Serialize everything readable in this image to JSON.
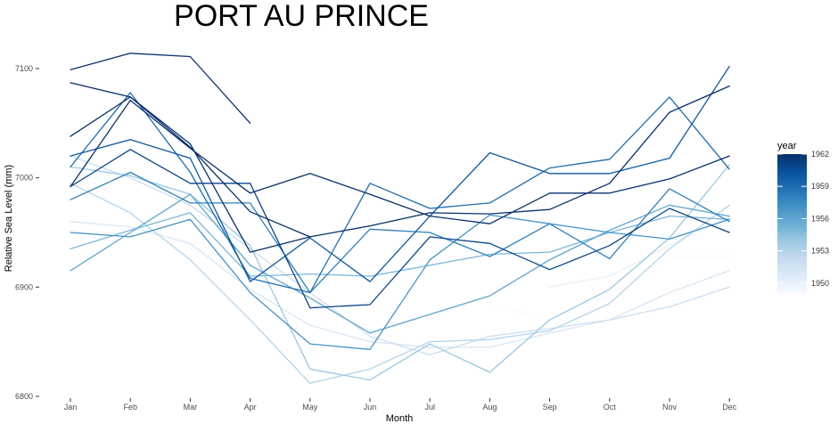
{
  "chart_data": {
    "type": "line",
    "title": "PORT AU PRINCE",
    "xlabel": "Month",
    "ylabel": "Relative Sea Level (mm)",
    "categories": [
      "Jan",
      "Feb",
      "Mar",
      "Apr",
      "May",
      "Jun",
      "Jul",
      "Aug",
      "Sep",
      "Oct",
      "Nov",
      "Dec"
    ],
    "ylim": [
      6800,
      7130
    ],
    "yticks": [
      6800,
      6900,
      7000,
      7100
    ],
    "grid": false,
    "legend": {
      "title": "year",
      "placement": "right",
      "type": "colorbar",
      "range": [
        1949,
        1962
      ],
      "ticks": [
        1950,
        1953,
        1956,
        1959,
        1962
      ],
      "low_color": "#f7fbff",
      "high_color": "#08306b"
    },
    "series": [
      {
        "year": 1949,
        "values": [
          null,
          null,
          null,
          null,
          null,
          null,
          null,
          6885,
          6870,
          6893,
          6928,
          6928
        ]
      },
      {
        "year": 1950,
        "values": [
          null,
          null,
          null,
          null,
          null,
          null,
          null,
          null,
          6900,
          6910,
          6938,
          6965
        ]
      },
      {
        "year": 1951,
        "values": [
          6960,
          6955,
          6940,
          6898,
          6865,
          6850,
          6845,
          6845,
          6858,
          6870,
          6895,
          6915
        ]
      },
      {
        "year": 1952,
        "values": [
          7020,
          7000,
          6975,
          6935,
          6895,
          6855,
          6838,
          6855,
          6862,
          6870,
          6882,
          6900
        ]
      },
      {
        "year": 1953,
        "values": [
          6995,
          6968,
          6925,
          6870,
          6812,
          6825,
          6850,
          6852,
          6860,
          6885,
          6935,
          6975
        ]
      },
      {
        "year": 1954,
        "values": [
          7010,
          7002,
          6985,
          6938,
          6825,
          6815,
          6848,
          6822,
          6870,
          6898,
          6945,
          7012
        ]
      },
      {
        "year": 1955,
        "values": [
          6935,
          6952,
          6968,
          6910,
          6912,
          6910,
          6920,
          6930,
          6932,
          6950,
          6965,
          6962
        ]
      },
      {
        "year": 1956,
        "values": [
          6915,
          6950,
          6985,
          6920,
          6890,
          6858,
          6875,
          6892,
          6925,
          6952,
          6975,
          6965
        ]
      },
      {
        "year": 1957,
        "values": [
          6950,
          6946,
          6962,
          6895,
          6848,
          6843,
          6925,
          6966,
          6958,
          6950,
          6944,
          6962
        ]
      },
      {
        "year": 1958,
        "values": [
          6980,
          7005,
          6977,
          6977,
          6895,
          6953,
          6950,
          6928,
          6958,
          6926,
          6990,
          6960
        ]
      },
      {
        "year": 1959,
        "values": [
          7010,
          7078,
          7005,
          6908,
          6895,
          6995,
          6972,
          6977,
          7009,
          7017,
          7074,
          7008
        ]
      },
      {
        "year": 1960,
        "values": [
          7020,
          7035,
          7018,
          6905,
          6945,
          6905,
          6965,
          7023,
          7004,
          7004,
          7018,
          7102
        ]
      },
      {
        "year": 1961,
        "values": [
          6992,
          7026,
          6995,
          6995,
          6881,
          6884,
          6946,
          6940,
          6916,
          6938,
          6972,
          6950
        ]
      },
      {
        "year": 1962,
        "values": [
          6992,
          7071,
          7027,
          6986,
          7004,
          6985,
          6965,
          6958,
          6986,
          6986,
          6999,
          7020
        ]
      },
      {
        "year": 1962,
        "values": [
          7038,
          7074,
          7031,
          6932,
          6946,
          6956,
          6968,
          6967,
          6971,
          6995,
          7060,
          7084
        ]
      },
      {
        "year": 1962,
        "values": [
          7087,
          7074,
          7028,
          6969,
          6946,
          null,
          null,
          null,
          null,
          null,
          null,
          null
        ]
      },
      {
        "year": 1962,
        "values": [
          7099,
          7114,
          7111,
          7050,
          null,
          null,
          null,
          null,
          null,
          null,
          null,
          null
        ]
      }
    ]
  }
}
